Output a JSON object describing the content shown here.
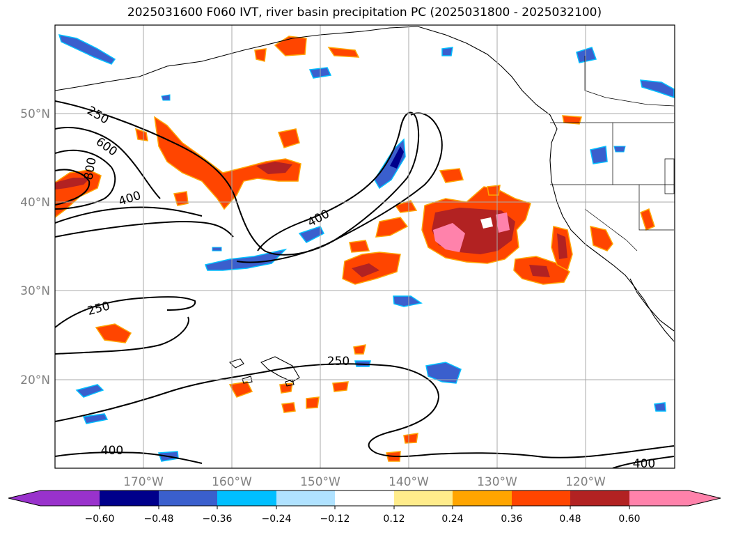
{
  "title": "2025031600 F060 IVT, river basin precipitation PC (2025031800 - 2025032100)",
  "lat_labels": [
    "50°N",
    "40°N",
    "30°N",
    "20°N"
  ],
  "lon_labels": [
    "170°W",
    "160°W",
    "150°W",
    "140°W",
    "130°W",
    "120°W"
  ],
  "ivt_contour_labels": [
    "250",
    "600",
    "800",
    "400",
    "400",
    "250",
    "250",
    "400",
    "400"
  ],
  "colorbar": {
    "ticks": [
      "−0.60",
      "−0.48",
      "−0.36",
      "−0.24",
      "−0.12",
      "0.12",
      "0.24",
      "0.36",
      "0.48",
      "0.60"
    ],
    "colors": [
      "#9932cc",
      "#00008b",
      "#3a5fcd",
      "#00bfff",
      "#b0e2ff",
      "#ffffff",
      "#ffec8b",
      "#ffa500",
      "#ff4500",
      "#b22222",
      "#ff82ab"
    ]
  }
}
